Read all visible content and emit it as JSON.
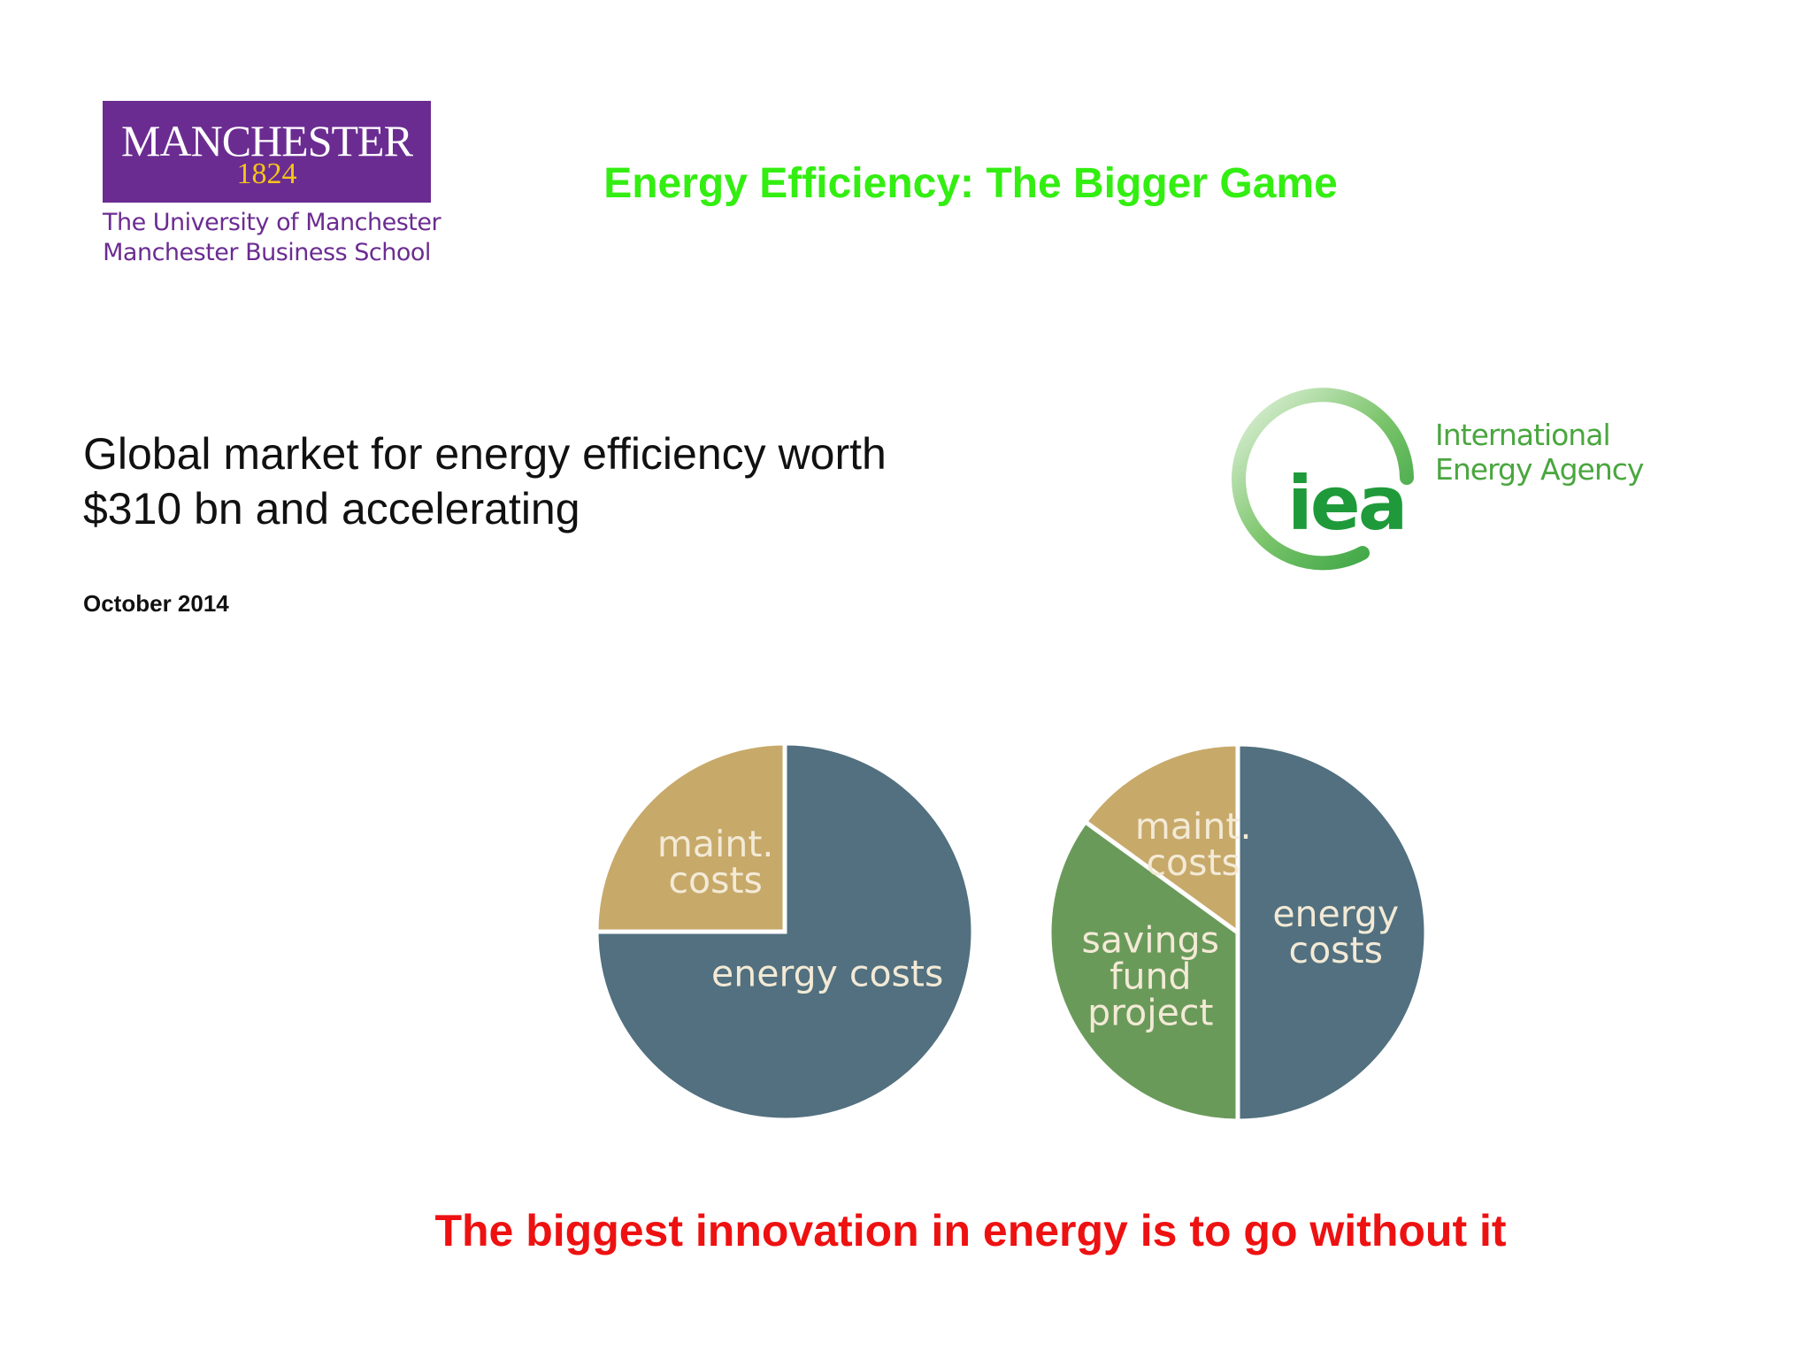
{
  "logo": {
    "name": "MANCHESTER",
    "year": "1824",
    "lines": [
      "The University of Manchester",
      "Manchester Business School"
    ]
  },
  "title": "Energy Efficiency: The Bigger Game",
  "headline": [
    "Global market for energy efficiency worth",
    "$310 bn and accelerating"
  ],
  "date": "October 2014",
  "iea_logo": {
    "mark": "iea",
    "name": [
      "International",
      "Energy Agency"
    ]
  },
  "chart_data": [
    {
      "type": "pie",
      "categories": [
        "energy costs",
        "maint. costs"
      ],
      "values": [
        75,
        25
      ],
      "colors": [
        "#52707f",
        "#c7a96a"
      ]
    },
    {
      "type": "pie",
      "categories": [
        "energy costs",
        "savings fund project",
        "maint. costs"
      ],
      "values": [
        50,
        35,
        15
      ],
      "colors": [
        "#52707f",
        "#6a9a5a",
        "#c7a96a"
      ]
    }
  ],
  "footer": "The biggest innovation in energy is to go without it"
}
